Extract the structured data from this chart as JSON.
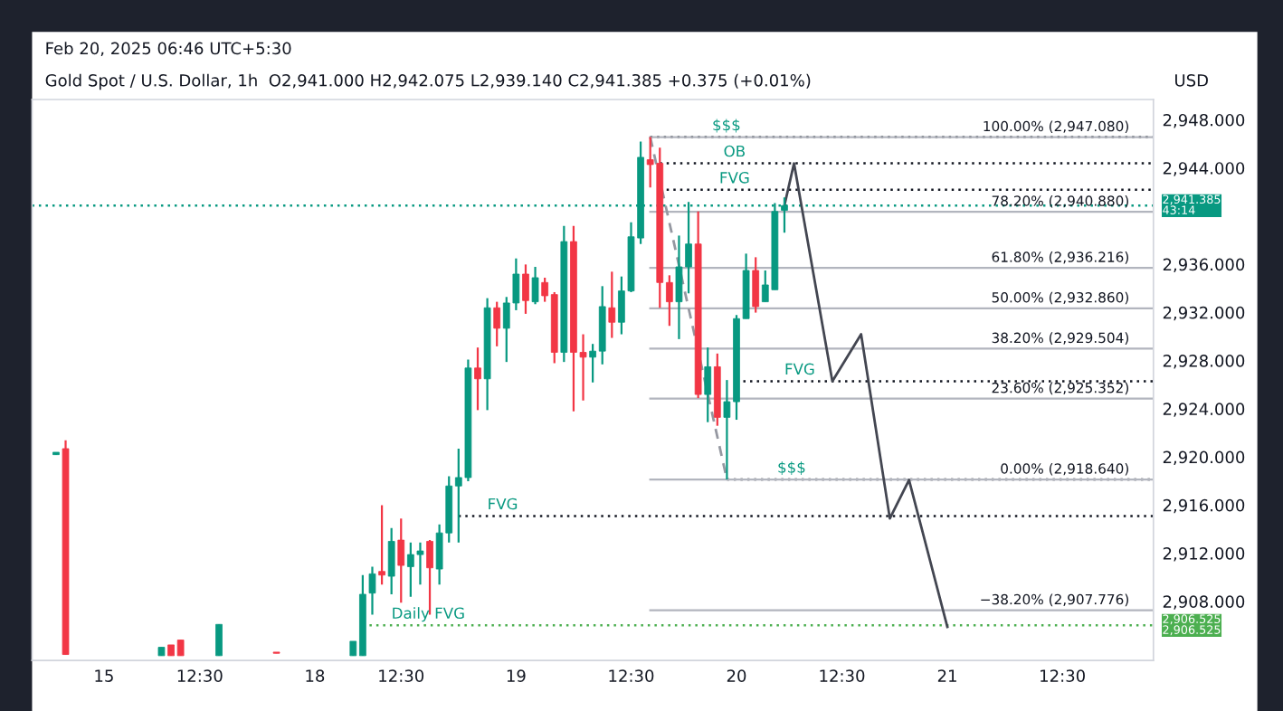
{
  "chart_data": {
    "type": "candlestick",
    "title": "Gold Spot / U.S. Dollar, 1h",
    "subtitle": "O2,941.000 H2,942.075 L2,939.140 C2,941.385 +0.375 (+0.01%)",
    "categories": [
      null,
      null,
      null,
      null,
      null,
      null,
      null,
      "15",
      null,
      null,
      null,
      null,
      null,
      null,
      null,
      null,
      null,
      "12:30",
      null,
      null,
      null,
      null,
      null,
      null,
      null,
      null,
      null,
      null,
      null,
      "18",
      null,
      null,
      null,
      null,
      null,
      null,
      null,
      null,
      "12:30",
      null,
      null,
      null,
      null,
      null,
      null,
      null,
      null,
      null,
      null,
      null,
      "19",
      null,
      null,
      null,
      null,
      null,
      null,
      null,
      null,
      null,
      null,
      null,
      "12:30",
      null,
      null,
      null,
      null,
      null,
      null,
      null,
      null,
      null,
      null,
      "20",
      null,
      null,
      null,
      null,
      null,
      null,
      null,
      null,
      null,
      null,
      "12:30",
      null,
      null,
      null,
      null,
      null,
      null,
      null,
      null,
      null,
      null,
      "21",
      null,
      null,
      null,
      null,
      null,
      null,
      null,
      null,
      null,
      null,
      null,
      "12:30",
      null,
      null,
      null,
      null,
      null,
      null,
      null,
      null,
      null
    ],
    "ohlc": [
      null,
      null,
      [
        2920.7,
        2920.9,
        2920.7,
        2920.9
      ],
      [
        2921.2,
        2921.9,
        2904.1,
        2904.1
      ],
      null,
      null,
      null,
      null,
      null,
      null,
      null,
      null,
      null,
      [
        2904.0,
        2904.7,
        2904.0,
        2904.7
      ],
      [
        2904.9,
        2904.9,
        2904.0,
        2904.0
      ],
      [
        2905.3,
        2905.3,
        2904.0,
        2904.0
      ],
      null,
      null,
      null,
      [
        2904.0,
        2906.6,
        2904.0,
        2906.6
      ],
      null,
      null,
      null,
      null,
      null,
      [
        2904.3,
        2904.3,
        2904.2,
        2904.2
      ],
      null,
      null,
      null,
      null,
      null,
      null,
      null,
      [
        2904.0,
        2905.2,
        2904.0,
        2905.2
      ],
      [
        2904.0,
        2910.7,
        2904.0,
        2909.1
      ],
      [
        2909.2,
        2911.4,
        2907.4,
        2910.8
      ],
      [
        2911.0,
        2916.5,
        2909.9,
        2910.7
      ],
      [
        2910.6,
        2914.6,
        2909.1,
        2913.5
      ],
      [
        2913.6,
        2915.4,
        2908.4,
        2911.5
      ],
      [
        2911.4,
        2913.4,
        2908.9,
        2912.4
      ],
      [
        2912.4,
        2913.4,
        2909.9,
        2912.7
      ],
      [
        2913.5,
        2913.6,
        2907.4,
        2911.3
      ],
      [
        2911.2,
        2914.9,
        2909.9,
        2914.2
      ],
      [
        2914.2,
        2918.9,
        2913.4,
        2918.1
      ],
      [
        2918.1,
        2921.2,
        2913.4,
        2918.8
      ],
      [
        2918.8,
        2928.6,
        2918.5,
        2927.9
      ],
      [
        2927.9,
        2929.6,
        2924.4,
        2927.0
      ],
      [
        2927.0,
        2933.7,
        2924.4,
        2932.9
      ],
      [
        2932.9,
        2933.4,
        2929.7,
        2931.2
      ],
      [
        2931.2,
        2933.8,
        2928.4,
        2933.3
      ],
      [
        2933.3,
        2937.0,
        2932.7,
        2935.7
      ],
      [
        2935.7,
        2936.5,
        2932.4,
        2933.5
      ],
      [
        2933.4,
        2936.3,
        2933.2,
        2935.4
      ],
      [
        2935.0,
        2935.4,
        2933.4,
        2933.9
      ],
      [
        2934.0,
        2934.2,
        2928.3,
        2929.2
      ],
      [
        2929.2,
        2939.7,
        2928.4,
        2938.4
      ],
      [
        2938.4,
        2939.7,
        2924.3,
        2929.2
      ],
      [
        2929.2,
        2930.7,
        2925.2,
        2928.8
      ],
      [
        2928.8,
        2929.9,
        2926.7,
        2929.3
      ],
      [
        2929.3,
        2934.7,
        2928.2,
        2933.0
      ],
      [
        2932.9,
        2935.9,
        2930.4,
        2931.7
      ],
      [
        2931.7,
        2935.5,
        2930.7,
        2934.3
      ],
      [
        2934.3,
        2940.0,
        2934.2,
        2938.8
      ],
      [
        2938.7,
        2946.7,
        2938.2,
        2945.4
      ],
      [
        2945.2,
        2947.08,
        2942.9,
        2944.8
      ],
      [
        2944.9,
        2946.2,
        2932.9,
        2935.0
      ],
      [
        2935.0,
        2935.6,
        2931.4,
        2933.4
      ],
      [
        2933.4,
        2938.9,
        2930.3,
        2936.3
      ],
      [
        2936.3,
        2941.7,
        2934.1,
        2938.2
      ],
      [
        2938.2,
        2940.9,
        2925.4,
        2925.7
      ],
      [
        2925.7,
        2929.6,
        2923.4,
        2928.0
      ],
      [
        2928.0,
        2929.1,
        2923.1,
        2923.8
      ],
      [
        2923.8,
        2926.9,
        2918.64,
        2925.1
      ],
      [
        2925.1,
        2932.3,
        2923.6,
        2932.0
      ],
      [
        2932.0,
        2937.4,
        2932.0,
        2936.0
      ],
      [
        2936.0,
        2937.1,
        2932.5,
        2933.0
      ],
      [
        2933.4,
        2936.0,
        2933.4,
        2934.8
      ],
      [
        2934.4,
        2941.6,
        2934.4,
        2940.9
      ],
      [
        2941.0,
        2942.075,
        2939.14,
        2941.385
      ],
      null,
      null,
      null,
      null,
      null,
      null,
      null,
      null,
      null,
      null,
      null,
      null,
      null,
      null,
      null,
      null,
      null,
      null,
      null,
      null,
      null,
      null,
      null,
      null,
      null,
      null,
      null,
      null,
      null,
      null,
      null,
      null,
      null,
      null,
      null,
      null,
      null,
      null
    ],
    "series": [
      {
        "type": "line",
        "color": "#9598a1",
        "line_style": "dashed",
        "values": [
          null,
          null,
          null,
          null,
          null,
          null,
          null,
          null,
          null,
          null,
          null,
          null,
          null,
          null,
          null,
          null,
          null,
          null,
          null,
          null,
          null,
          null,
          null,
          null,
          null,
          null,
          null,
          null,
          null,
          null,
          null,
          null,
          null,
          null,
          null,
          null,
          null,
          null,
          null,
          null,
          null,
          null,
          null,
          null,
          null,
          null,
          null,
          null,
          null,
          null,
          null,
          null,
          null,
          null,
          null,
          null,
          null,
          null,
          null,
          null,
          null,
          null,
          null,
          null,
          2947.08,
          null,
          null,
          null,
          null,
          null,
          null,
          null,
          2918.64,
          null,
          null,
          null,
          null,
          null,
          null,
          null,
          null,
          null,
          null,
          null,
          null,
          null,
          null,
          null,
          null,
          null,
          null,
          null,
          null,
          null,
          null,
          null,
          null,
          null,
          null,
          null,
          null,
          null,
          null,
          null,
          null,
          null,
          null,
          null,
          null,
          null,
          null,
          null,
          null,
          null,
          null,
          null,
          null
        ]
      },
      {
        "type": "line",
        "color": "#434651",
        "line_style": "solid",
        "values": [
          null,
          null,
          null,
          null,
          null,
          null,
          null,
          null,
          null,
          null,
          null,
          null,
          null,
          null,
          null,
          null,
          null,
          null,
          null,
          null,
          null,
          null,
          null,
          null,
          null,
          null,
          null,
          null,
          null,
          null,
          null,
          null,
          null,
          null,
          null,
          null,
          null,
          null,
          null,
          null,
          null,
          null,
          null,
          null,
          null,
          null,
          null,
          null,
          null,
          null,
          null,
          null,
          null,
          null,
          null,
          null,
          null,
          null,
          null,
          null,
          null,
          null,
          null,
          null,
          null,
          null,
          null,
          null,
          null,
          null,
          null,
          null,
          null,
          null,
          null,
          null,
          null,
          null,
          2941.4,
          2944.9,
          null,
          null,
          null,
          2926.8,
          null,
          null,
          2930.7,
          null,
          null,
          2915.4,
          null,
          2918.6,
          null,
          null,
          null,
          2906.4,
          null,
          null,
          null,
          null,
          null,
          null,
          null,
          null,
          null,
          null,
          null,
          null,
          null,
          null,
          null,
          null,
          null,
          null,
          null,
          null,
          null
        ]
      }
    ],
    "ref_lines": [
      {
        "axis": "y",
        "value": 2941.385,
        "color": "#089981",
        "line_style": "dotted"
      },
      {
        "axis": "y",
        "value": 2906.525,
        "label": "Daily FVG",
        "color": "#4caf50",
        "line_style": "dotted"
      },
      {
        "axis": "y",
        "value": 2947.08,
        "label": "$$$",
        "color": "#131722",
        "line_style": "dotted"
      },
      {
        "axis": "y",
        "value": 2944.9,
        "label": "OB",
        "color": "#131722",
        "line_style": "dotted"
      },
      {
        "axis": "y",
        "value": 2942.7,
        "label": "FVG",
        "color": "#131722",
        "line_style": "dotted"
      },
      {
        "axis": "y",
        "value": 2926.8,
        "label": "FVG",
        "color": "#131722",
        "line_style": "dotted"
      },
      {
        "axis": "y",
        "value": 2918.64,
        "label": "$$$",
        "color": "#131722",
        "line_style": "dotted"
      },
      {
        "axis": "y",
        "value": 2915.6,
        "label": "FVG",
        "color": "#131722",
        "line_style": "dotted"
      },
      {
        "axis": "y",
        "value": 2947.08,
        "label": "100.00% (2,947.080)",
        "color": "#b2b5be",
        "line_style": "solid"
      },
      {
        "axis": "y",
        "value": 2940.88,
        "label": "78.20% (2,940.880)",
        "color": "#b2b5be",
        "line_style": "solid"
      },
      {
        "axis": "y",
        "value": 2936.216,
        "label": "61.80% (2,936.216)",
        "color": "#b2b5be",
        "line_style": "solid"
      },
      {
        "axis": "y",
        "value": 2932.86,
        "label": "50.00% (2,932.860)",
        "color": "#b2b5be",
        "line_style": "solid"
      },
      {
        "axis": "y",
        "value": 2929.504,
        "label": "38.20% (2,929.504)",
        "color": "#b2b5be",
        "line_style": "solid"
      },
      {
        "axis": "y",
        "value": 2925.352,
        "label": "23.60% (2,925.352)",
        "color": "#b2b5be",
        "line_style": "solid"
      },
      {
        "axis": "y",
        "value": 2918.64,
        "label": "0.00% (2,918.640)",
        "color": "#b2b5be",
        "line_style": "solid"
      },
      {
        "axis": "y",
        "value": 2907.776,
        "label": "−38.20% (2,907.776)",
        "color": "#b2b5be",
        "line_style": "solid"
      }
    ],
    "annotations": [
      "Feb 20, 2025 06:46 UTC+5:30",
      "USD"
    ],
    "ylim": [
      2903.6,
      2950.2
    ],
    "yticks": [
      {
        "value": 2948,
        "label": "2,948.000"
      },
      {
        "value": 2944,
        "label": "2,944.000"
      },
      {
        "value": 2941.385,
        "label": "2,941.385\n43:14"
      },
      {
        "value": 2936,
        "label": "2,936.000"
      },
      {
        "value": 2932,
        "label": "2,932.000"
      },
      {
        "value": 2928,
        "label": "2,928.000"
      },
      {
        "value": 2924,
        "label": "2,924.000"
      },
      {
        "value": 2920,
        "label": "2,920.000"
      },
      {
        "value": 2916,
        "label": "2,916.000"
      },
      {
        "value": 2912,
        "label": "2,912.000"
      },
      {
        "value": 2908,
        "label": "2,908.000"
      },
      {
        "value": 2906.525,
        "label": "2,906.525\n2,906.525"
      }
    ],
    "grid": false,
    "legend": false
  }
}
